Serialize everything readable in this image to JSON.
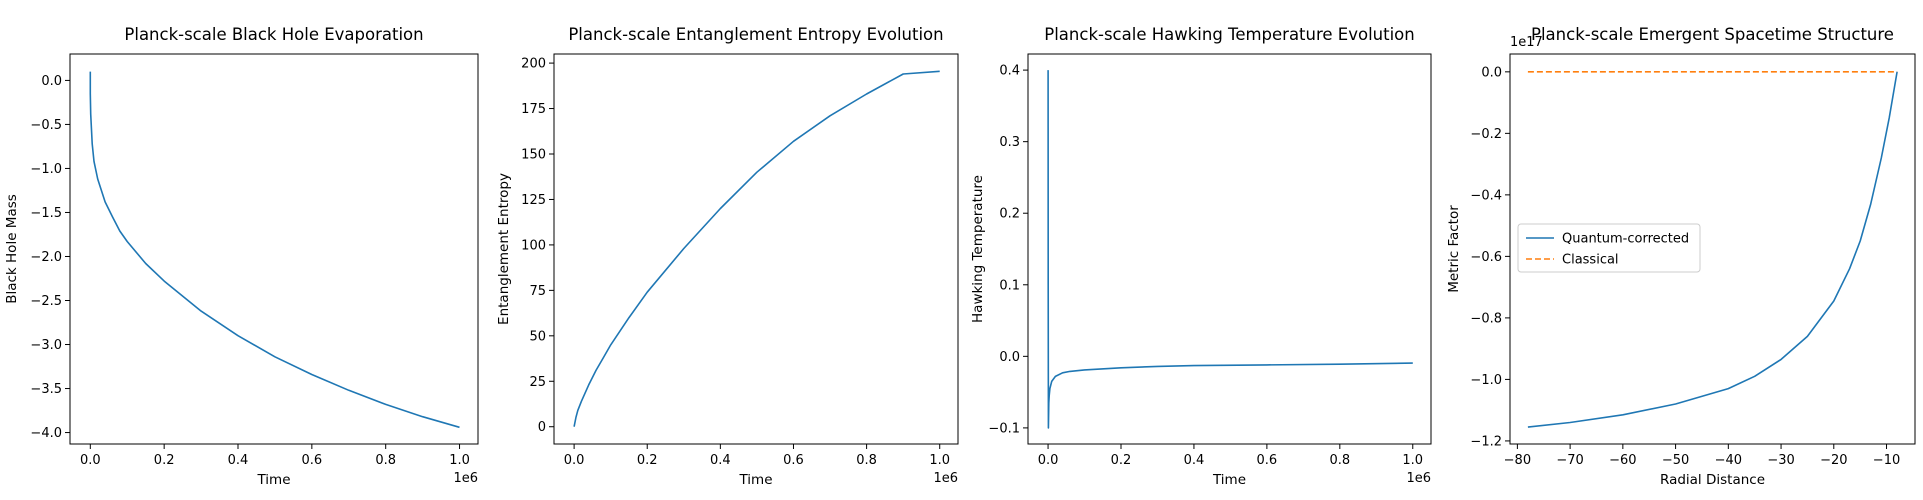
{
  "chart_data": [
    {
      "type": "line",
      "title": "Planck-scale Black Hole Evaporation",
      "xlabel": "Time",
      "ylabel": "Black Hole Mass",
      "x_offset_label": "1e6",
      "xlim": [
        -55000,
        1050000
      ],
      "ylim": [
        -4.13,
        0.3
      ],
      "xticks": [
        0,
        200000,
        400000,
        600000,
        800000,
        1000000
      ],
      "xtick_labels": [
        "0.0",
        "0.2",
        "0.4",
        "0.6",
        "0.8",
        "1.0"
      ],
      "yticks": [
        0.0,
        -0.5,
        -1.0,
        -1.5,
        -2.0,
        -2.5,
        -3.0,
        -3.5,
        -4.0
      ],
      "ytick_labels": [
        "0.0",
        "−0.5",
        "−1.0",
        "−1.5",
        "−2.0",
        "−2.5",
        "−3.0",
        "−3.5",
        "−4.0"
      ],
      "series": [
        {
          "color": "#1f77b4",
          "dash": "",
          "x": [
            0,
            100,
            1000,
            5000,
            10000,
            20000,
            40000,
            60000,
            80000,
            100000,
            150000,
            200000,
            300000,
            400000,
            500000,
            600000,
            700000,
            800000,
            900000,
            1000000
          ],
          "y": [
            0.1,
            -0.15,
            -0.38,
            -0.72,
            -0.92,
            -1.12,
            -1.38,
            -1.55,
            -1.71,
            -1.83,
            -2.08,
            -2.28,
            -2.62,
            -2.9,
            -3.14,
            -3.34,
            -3.52,
            -3.68,
            -3.82,
            -3.94
          ]
        }
      ]
    },
    {
      "type": "line",
      "title": "Planck-scale Entanglement Entropy Evolution",
      "xlabel": "Time",
      "ylabel": "Entanglement Entropy",
      "x_offset_label": "1e6",
      "xlim": [
        -55000,
        1050000
      ],
      "ylim": [
        -9.5,
        205
      ],
      "xticks": [
        0,
        200000,
        400000,
        600000,
        800000,
        1000000
      ],
      "xtick_labels": [
        "0.0",
        "0.2",
        "0.4",
        "0.6",
        "0.8",
        "1.0"
      ],
      "yticks": [
        0,
        25,
        50,
        75,
        100,
        125,
        150,
        175,
        200
      ],
      "ytick_labels": [
        "0",
        "25",
        "50",
        "75",
        "100",
        "125",
        "150",
        "175",
        "200"
      ],
      "series": [
        {
          "color": "#1f77b4",
          "dash": "",
          "x": [
            0,
            5000,
            10000,
            20000,
            40000,
            60000,
            80000,
            100000,
            150000,
            200000,
            300000,
            400000,
            500000,
            600000,
            700000,
            800000,
            900000,
            1000000
          ],
          "y": [
            0,
            5,
            9,
            14,
            23,
            31,
            38,
            45,
            60,
            74,
            98,
            120,
            140,
            157,
            171,
            183,
            194,
            195.5
          ]
        }
      ]
    },
    {
      "type": "line",
      "title": "Planck-scale Hawking Temperature Evolution",
      "xlabel": "Time",
      "ylabel": "Hawking Temperature",
      "x_offset_label": "1e6",
      "xlim": [
        -55000,
        1050000
      ],
      "ylim": [
        -0.1225,
        0.4225
      ],
      "xticks": [
        0,
        200000,
        400000,
        600000,
        800000,
        1000000
      ],
      "xtick_labels": [
        "0.0",
        "0.2",
        "0.4",
        "0.6",
        "0.8",
        "1.0"
      ],
      "yticks": [
        -0.1,
        0.0,
        0.1,
        0.2,
        0.3,
        0.4
      ],
      "ytick_labels": [
        "−0.1",
        "0.0",
        "0.1",
        "0.2",
        "0.3",
        "0.4"
      ],
      "series": [
        {
          "color": "#1f77b4",
          "dash": "",
          "x": [
            0,
            500,
            1000,
            2000,
            3000,
            5000,
            10000,
            20000,
            40000,
            60000,
            100000,
            200000,
            300000,
            400000,
            600000,
            800000,
            1000000
          ],
          "y": [
            0.4,
            0.1,
            -0.1,
            -0.065,
            -0.055,
            -0.045,
            -0.035,
            -0.028,
            -0.023,
            -0.021,
            -0.019,
            -0.016,
            -0.014,
            -0.013,
            -0.012,
            -0.011,
            -0.0095
          ]
        }
      ]
    },
    {
      "type": "line",
      "title": "Planck-scale Emergent Spacetime Structure",
      "xlabel": "Radial Distance",
      "ylabel": "Metric Factor",
      "y_offset_label": "1e17",
      "xlim": [
        -81.4,
        -4.6
      ],
      "ylim": [
        -1.21e+17,
        5800000000000000.0
      ],
      "xticks": [
        -80,
        -70,
        -60,
        -50,
        -40,
        -30,
        -20,
        -10
      ],
      "xtick_labels": [
        "−80",
        "−70",
        "−60",
        "−50",
        "−40",
        "−30",
        "−20",
        "−10"
      ],
      "yticks": [
        0.0,
        -2e+16,
        -4e+16,
        -6e+16,
        -8e+16,
        -1e+17,
        -1.2e+17
      ],
      "ytick_labels": [
        "0.0",
        "−0.2",
        "−0.4",
        "−0.6",
        "−0.8",
        "−1.0",
        "−1.2"
      ],
      "legend": {
        "location": "center-left",
        "entries": [
          "Quantum-corrected",
          "Classical"
        ]
      },
      "series": [
        {
          "name": "Quantum-corrected",
          "color": "#1f77b4",
          "dash": "",
          "x": [
            -78,
            -70,
            -60,
            -50,
            -40,
            -35,
            -30,
            -25,
            -20,
            -17,
            -15,
            -13,
            -11,
            -9.5,
            -8
          ],
          "y": [
            -1.155e+17,
            -1.14e+17,
            -1.115e+17,
            -1.08e+17,
            -1.03e+17,
            -9.9e+16,
            -9.35e+16,
            -8.6e+16,
            -7.45e+16,
            -6.4e+16,
            -5.5e+16,
            -4.3e+16,
            -2.8e+16,
            -1.5e+16,
            0.0
          ]
        },
        {
          "name": "Classical",
          "color": "#ff7f0e",
          "dash": "6,3",
          "x": [
            -78,
            -8
          ],
          "y": [
            0.0,
            0.0
          ]
        }
      ]
    }
  ]
}
